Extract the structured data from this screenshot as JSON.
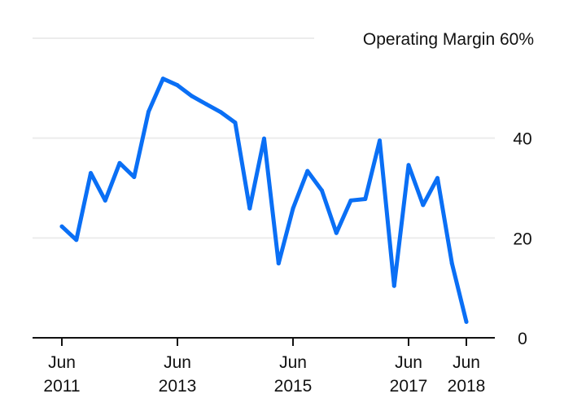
{
  "colors": {
    "line": "#0a6ff5",
    "grid": "#ececec",
    "axis": "#111111",
    "text": "#111111"
  },
  "chart_data": {
    "type": "line",
    "title_prefix": "Operating Margin",
    "title": "Operating Margin 60%",
    "ylim": [
      0,
      60
    ],
    "y_ticks": [
      {
        "value": 0,
        "label": "0"
      },
      {
        "value": 20,
        "label": "20"
      },
      {
        "value": 40,
        "label": "40"
      }
    ],
    "top_tick_label": "60%",
    "x_ticks": [
      {
        "date": "2011-06",
        "month": "Jun",
        "year": "2011"
      },
      {
        "date": "2013-06",
        "month": "Jun",
        "year": "2013"
      },
      {
        "date": "2015-06",
        "month": "Jun",
        "year": "2015"
      },
      {
        "date": "2017-06",
        "month": "Jun",
        "year": "2017"
      },
      {
        "date": "2018-06",
        "month": "Jun",
        "year": "2018"
      }
    ],
    "grid": true,
    "series": [
      {
        "points": [
          {
            "x": "2011-06",
            "y": 22.3
          },
          {
            "x": "2011-09",
            "y": 19.6
          },
          {
            "x": "2011-12",
            "y": 33.0
          },
          {
            "x": "2012-03",
            "y": 27.5
          },
          {
            "x": "2012-06",
            "y": 35.0
          },
          {
            "x": "2012-09",
            "y": 32.2
          },
          {
            "x": "2012-12",
            "y": 45.3
          },
          {
            "x": "2013-03",
            "y": 51.9
          },
          {
            "x": "2013-06",
            "y": 50.6
          },
          {
            "x": "2013-09",
            "y": 48.4
          },
          {
            "x": "2013-12",
            "y": 46.8
          },
          {
            "x": "2014-03",
            "y": 45.2
          },
          {
            "x": "2014-06",
            "y": 43.1
          },
          {
            "x": "2014-09",
            "y": 25.9
          },
          {
            "x": "2014-12",
            "y": 39.9
          },
          {
            "x": "2015-03",
            "y": 14.9
          },
          {
            "x": "2015-06",
            "y": 25.9
          },
          {
            "x": "2015-09",
            "y": 33.4
          },
          {
            "x": "2015-12",
            "y": 29.5
          },
          {
            "x": "2016-03",
            "y": 21.0
          },
          {
            "x": "2016-06",
            "y": 27.5
          },
          {
            "x": "2016-09",
            "y": 27.8
          },
          {
            "x": "2016-12",
            "y": 39.5
          },
          {
            "x": "2017-03",
            "y": 10.4
          },
          {
            "x": "2017-06",
            "y": 34.6
          },
          {
            "x": "2017-09",
            "y": 26.6
          },
          {
            "x": "2017-12",
            "y": 32.0
          },
          {
            "x": "2018-03",
            "y": 14.9
          },
          {
            "x": "2018-06",
            "y": 3.2
          }
        ]
      }
    ]
  }
}
